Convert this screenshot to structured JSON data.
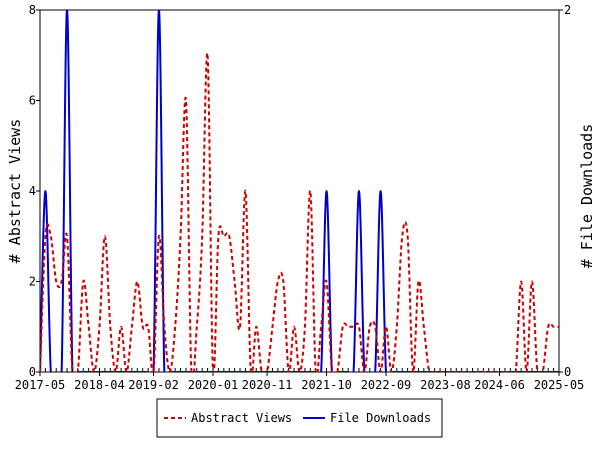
{
  "chart_data": {
    "type": "line",
    "x_tick_labels": [
      "2017-05",
      "2018-04",
      "2019-02",
      "2020-01",
      "2020-11",
      "2021-10",
      "2022-09",
      "2023-08",
      "2024-06",
      "2025-05"
    ],
    "x_range": [
      "2017-05",
      "2025-05"
    ],
    "ylabel_left": "# Abstract Views",
    "ylabel_right": "# File Downloads",
    "yrange_left": [
      0,
      8
    ],
    "yrange_right": [
      0,
      2
    ],
    "y_left_ticks": [
      "0",
      "2",
      "4",
      "6",
      "8"
    ],
    "y_right_ticks": [
      "0",
      "2"
    ],
    "grid": false,
    "legend_position": "bottom-center",
    "series": [
      {
        "name": "Abstract Views",
        "axis": "left",
        "color": "#cc0000",
        "style": "dashed",
        "points": [
          [
            "2017-05",
            0
          ],
          [
            "2017-06",
            3
          ],
          [
            "2017-07",
            3
          ],
          [
            "2017-08",
            2
          ],
          [
            "2017-09",
            2
          ],
          [
            "2017-10",
            3
          ],
          [
            "2017-11",
            0
          ],
          [
            "2017-12",
            0
          ],
          [
            "2018-01",
            2
          ],
          [
            "2018-02",
            1
          ],
          [
            "2018-03",
            0
          ],
          [
            "2018-04",
            1
          ],
          [
            "2018-05",
            3
          ],
          [
            "2018-06",
            1
          ],
          [
            "2018-07",
            0
          ],
          [
            "2018-08",
            1
          ],
          [
            "2018-09",
            0
          ],
          [
            "2018-10",
            1
          ],
          [
            "2018-11",
            2
          ],
          [
            "2018-12",
            1
          ],
          [
            "2019-01",
            1
          ],
          [
            "2019-02",
            0
          ],
          [
            "2019-03",
            3
          ],
          [
            "2019-04",
            1
          ],
          [
            "2019-05",
            0
          ],
          [
            "2019-06",
            1
          ],
          [
            "2019-07",
            3
          ],
          [
            "2019-08",
            6
          ],
          [
            "2019-09",
            0
          ],
          [
            "2019-10",
            1
          ],
          [
            "2019-11",
            3
          ],
          [
            "2019-12",
            7
          ],
          [
            "2020-01",
            0
          ],
          [
            "2020-02",
            3
          ],
          [
            "2020-03",
            3
          ],
          [
            "2020-04",
            3
          ],
          [
            "2020-05",
            2
          ],
          [
            "2020-06",
            1
          ],
          [
            "2020-07",
            4
          ],
          [
            "2020-08",
            0
          ],
          [
            "2020-09",
            1
          ],
          [
            "2020-10",
            0
          ],
          [
            "2020-11",
            0
          ],
          [
            "2020-12",
            1
          ],
          [
            "2021-01",
            2
          ],
          [
            "2021-02",
            2
          ],
          [
            "2021-03",
            0
          ],
          [
            "2021-04",
            1
          ],
          [
            "2021-05",
            0
          ],
          [
            "2021-06",
            1
          ],
          [
            "2021-07",
            4
          ],
          [
            "2021-08",
            0
          ],
          [
            "2021-09",
            1
          ],
          [
            "2021-10",
            2
          ],
          [
            "2021-11",
            0
          ],
          [
            "2021-12",
            0
          ],
          [
            "2022-01",
            1
          ],
          [
            "2022-02",
            1
          ],
          [
            "2022-03",
            1
          ],
          [
            "2022-04",
            1
          ],
          [
            "2022-05",
            0
          ],
          [
            "2022-06",
            1
          ],
          [
            "2022-07",
            1
          ],
          [
            "2022-08",
            0
          ],
          [
            "2022-09",
            1
          ],
          [
            "2022-10",
            0
          ],
          [
            "2022-11",
            1
          ],
          [
            "2022-12",
            3
          ],
          [
            "2023-01",
            3
          ],
          [
            "2023-02",
            0
          ],
          [
            "2023-03",
            2
          ],
          [
            "2023-04",
            1
          ],
          [
            "2023-05",
            0
          ],
          [
            "2023-06",
            0
          ],
          [
            "2023-07",
            0
          ],
          [
            "2023-08",
            0
          ],
          [
            "2023-09",
            0
          ],
          [
            "2023-10",
            0
          ],
          [
            "2023-11",
            0
          ],
          [
            "2023-12",
            0
          ],
          [
            "2024-01",
            0
          ],
          [
            "2024-02",
            0
          ],
          [
            "2024-03",
            0
          ],
          [
            "2024-04",
            0
          ],
          [
            "2024-05",
            0
          ],
          [
            "2024-06",
            0
          ],
          [
            "2024-07",
            0
          ],
          [
            "2024-08",
            0
          ],
          [
            "2024-09",
            0
          ],
          [
            "2024-10",
            2
          ],
          [
            "2024-11",
            0
          ],
          [
            "2024-12",
            2
          ],
          [
            "2025-01",
            0
          ],
          [
            "2025-02",
            0
          ],
          [
            "2025-03",
            1
          ],
          [
            "2025-04",
            1
          ],
          [
            "2025-05",
            1
          ]
        ]
      },
      {
        "name": "File Downloads",
        "axis": "right",
        "color": "#0000cc",
        "style": "solid",
        "points": [
          [
            "2017-05",
            0
          ],
          [
            "2017-06",
            1
          ],
          [
            "2017-07",
            0
          ],
          [
            "2017-08",
            0
          ],
          [
            "2017-09",
            0
          ],
          [
            "2017-10",
            2
          ],
          [
            "2017-11",
            0
          ],
          [
            "2017-12",
            0
          ],
          [
            "2018-01",
            0
          ],
          [
            "2018-02",
            0
          ],
          [
            "2018-03",
            0
          ],
          [
            "2018-04",
            0
          ],
          [
            "2018-05",
            0
          ],
          [
            "2018-06",
            0
          ],
          [
            "2018-07",
            0
          ],
          [
            "2018-08",
            0
          ],
          [
            "2018-09",
            0
          ],
          [
            "2018-10",
            0
          ],
          [
            "2018-11",
            0
          ],
          [
            "2018-12",
            0
          ],
          [
            "2019-01",
            0
          ],
          [
            "2019-02",
            0
          ],
          [
            "2019-03",
            2
          ],
          [
            "2019-04",
            0
          ],
          [
            "2019-05",
            0
          ],
          [
            "2019-06",
            0
          ],
          [
            "2019-07",
            0
          ],
          [
            "2019-08",
            0
          ],
          [
            "2019-09",
            0
          ],
          [
            "2019-10",
            0
          ],
          [
            "2019-11",
            0
          ],
          [
            "2019-12",
            0
          ],
          [
            "2020-01",
            0
          ],
          [
            "2020-02",
            0
          ],
          [
            "2020-03",
            0
          ],
          [
            "2020-04",
            0
          ],
          [
            "2020-05",
            0
          ],
          [
            "2020-06",
            0
          ],
          [
            "2020-07",
            0
          ],
          [
            "2020-08",
            0
          ],
          [
            "2020-09",
            0
          ],
          [
            "2020-10",
            0
          ],
          [
            "2020-11",
            0
          ],
          [
            "2020-12",
            0
          ],
          [
            "2021-01",
            0
          ],
          [
            "2021-02",
            0
          ],
          [
            "2021-03",
            0
          ],
          [
            "2021-04",
            0
          ],
          [
            "2021-05",
            0
          ],
          [
            "2021-06",
            0
          ],
          [
            "2021-07",
            0
          ],
          [
            "2021-08",
            0
          ],
          [
            "2021-09",
            0
          ],
          [
            "2021-10",
            1
          ],
          [
            "2021-11",
            0
          ],
          [
            "2021-12",
            0
          ],
          [
            "2022-01",
            0
          ],
          [
            "2022-02",
            0
          ],
          [
            "2022-03",
            0
          ],
          [
            "2022-04",
            1
          ],
          [
            "2022-05",
            0
          ],
          [
            "2022-06",
            0
          ],
          [
            "2022-07",
            0
          ],
          [
            "2022-08",
            1
          ],
          [
            "2022-09",
            0
          ],
          [
            "2022-10",
            0
          ],
          [
            "2022-11",
            0
          ],
          [
            "2022-12",
            0
          ],
          [
            "2023-01",
            0
          ],
          [
            "2023-02",
            0
          ],
          [
            "2023-03",
            0
          ],
          [
            "2023-04",
            0
          ],
          [
            "2023-05",
            0
          ],
          [
            "2023-06",
            0
          ],
          [
            "2023-07",
            0
          ],
          [
            "2023-08",
            0
          ],
          [
            "2023-09",
            0
          ],
          [
            "2023-10",
            0
          ],
          [
            "2023-11",
            0
          ],
          [
            "2023-12",
            0
          ],
          [
            "2024-01",
            0
          ],
          [
            "2024-02",
            0
          ],
          [
            "2024-03",
            0
          ],
          [
            "2024-04",
            0
          ],
          [
            "2024-05",
            0
          ],
          [
            "2024-06",
            0
          ],
          [
            "2024-07",
            0
          ],
          [
            "2024-08",
            0
          ],
          [
            "2024-09",
            0
          ],
          [
            "2024-10",
            0
          ],
          [
            "2024-11",
            0
          ],
          [
            "2024-12",
            0
          ],
          [
            "2025-01",
            0
          ],
          [
            "2025-02",
            0
          ],
          [
            "2025-03",
            0
          ],
          [
            "2025-04",
            0
          ],
          [
            "2025-05",
            0
          ]
        ]
      }
    ]
  }
}
